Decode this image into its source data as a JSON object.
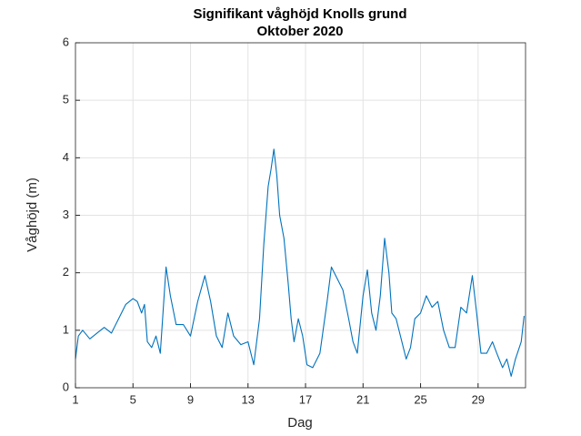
{
  "chart_data": {
    "type": "line",
    "title": "Signifikant våghöjd Knolls grund",
    "subtitle": "Oktober 2020",
    "x_label": "Dag",
    "y_label": "Våghöjd (m)",
    "xlim": [
      1,
      32.3
    ],
    "xticks": [
      1,
      5,
      9,
      13,
      17,
      21,
      25,
      29
    ],
    "ylim": [
      0,
      6
    ],
    "yticks": [
      0,
      1,
      2,
      3,
      4,
      5,
      6
    ],
    "grid": true,
    "x": [
      1.0,
      1.2,
      1.5,
      2.0,
      2.5,
      3.0,
      3.5,
      4.0,
      4.5,
      5.0,
      5.3,
      5.6,
      5.8,
      6.0,
      6.3,
      6.6,
      6.9,
      7.3,
      7.6,
      8.0,
      8.5,
      9.0,
      9.5,
      10.0,
      10.4,
      10.8,
      11.2,
      11.6,
      12.0,
      12.5,
      13.0,
      13.4,
      13.8,
      14.1,
      14.4,
      14.6,
      14.8,
      15.0,
      15.2,
      15.5,
      15.8,
      16.0,
      16.2,
      16.5,
      16.8,
      17.1,
      17.5,
      18.0,
      18.5,
      18.8,
      19.2,
      19.6,
      20.0,
      20.3,
      20.6,
      21.0,
      21.3,
      21.6,
      21.9,
      22.2,
      22.5,
      22.8,
      23.0,
      23.3,
      23.6,
      24.0,
      24.3,
      24.6,
      25.0,
      25.4,
      25.8,
      26.2,
      26.6,
      27.0,
      27.4,
      27.8,
      28.2,
      28.6,
      28.9,
      29.2,
      29.6,
      30.0,
      30.3,
      30.7,
      31.0,
      31.3,
      31.6,
      32.0,
      32.2
    ],
    "series": [
      {
        "color": "#0072bd",
        "values": [
          0.5,
          0.9,
          1.0,
          0.85,
          0.95,
          1.05,
          0.95,
          1.2,
          1.45,
          1.55,
          1.5,
          1.3,
          1.45,
          0.8,
          0.7,
          0.9,
          0.6,
          2.1,
          1.6,
          1.1,
          1.1,
          0.9,
          1.5,
          1.95,
          1.5,
          0.9,
          0.7,
          1.3,
          0.9,
          0.75,
          0.8,
          0.4,
          1.2,
          2.5,
          3.5,
          3.8,
          4.15,
          3.7,
          3.0,
          2.6,
          1.8,
          1.2,
          0.8,
          1.2,
          0.9,
          0.4,
          0.35,
          0.6,
          1.5,
          2.1,
          1.9,
          1.7,
          1.2,
          0.8,
          0.6,
          1.6,
          2.05,
          1.3,
          1.0,
          1.6,
          2.6,
          2.0,
          1.3,
          1.2,
          0.9,
          0.5,
          0.7,
          1.2,
          1.3,
          1.6,
          1.4,
          1.5,
          1.0,
          0.7,
          0.7,
          1.4,
          1.3,
          1.95,
          1.3,
          0.6,
          0.6,
          0.8,
          0.6,
          0.35,
          0.5,
          0.2,
          0.5,
          0.8,
          1.25
        ]
      }
    ]
  }
}
